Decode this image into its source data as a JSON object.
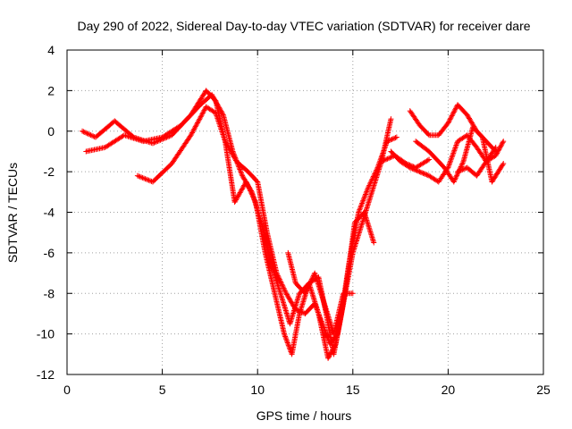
{
  "chart_data": {
    "type": "scatter",
    "title": "Day 290 of 2022, Sidereal Day-to-day VTEC variation (SDTVAR) for receiver dare",
    "xlabel": "GPS time / hours",
    "ylabel": "SDTVAR / TECUs",
    "xlim": [
      0,
      25
    ],
    "ylim": [
      -12,
      4
    ],
    "xticks": [
      0,
      5,
      10,
      15,
      20,
      25
    ],
    "yticks": [
      -12,
      -10,
      -8,
      -6,
      -4,
      -2,
      0,
      2,
      4
    ],
    "xtick_labels": [
      "0",
      "5",
      "10",
      "15",
      "20",
      "25"
    ],
    "ytick_labels": [
      "-12",
      "-10",
      "-8",
      "-6",
      "-4",
      "-2",
      "0",
      "2",
      "4"
    ],
    "grid": true,
    "marker": "+",
    "color": "#ff0000",
    "series": [
      {
        "x": [
          0.8,
          1.5,
          2.5,
          3.5,
          4.5,
          5.5,
          6.5,
          7.3,
          7.8,
          8.3,
          8.9,
          9.5,
          10.0,
          10.5,
          11.0,
          11.5,
          12.0,
          12.5,
          13.0,
          13.4,
          13.8,
          14.2,
          14.6,
          15.0,
          15.5,
          16.0,
          16.5,
          17.0
        ],
        "y": [
          0.0,
          -0.3,
          0.5,
          -0.3,
          -0.6,
          -0.2,
          0.8,
          2.0,
          1.5,
          -0.5,
          -1.5,
          -2.0,
          -2.5,
          -5.0,
          -7.0,
          -8.0,
          -8.8,
          -9.0,
          -8.5,
          -9.5,
          -10.5,
          -10.0,
          -8.0,
          -6.0,
          -4.5,
          -3.0,
          -1.5,
          0.6
        ]
      },
      {
        "x": [
          1.0,
          2.0,
          3.0,
          4.0,
          5.0,
          6.0,
          7.0,
          7.6,
          8.2,
          8.7,
          9.2,
          9.7,
          10.2,
          10.7,
          11.2,
          11.7,
          12.2,
          12.7,
          13.2,
          13.6,
          14.0,
          14.4,
          14.8,
          15.3,
          15.8,
          16.3,
          16.8,
          17.3
        ],
        "y": [
          -1.0,
          -0.8,
          -0.2,
          -0.5,
          -0.3,
          0.3,
          1.3,
          1.8,
          0.8,
          -1.0,
          -2.2,
          -3.0,
          -4.5,
          -6.5,
          -8.0,
          -9.5,
          -8.0,
          -7.5,
          -7.2,
          -9.0,
          -11.0,
          -9.0,
          -6.5,
          -4.0,
          -2.8,
          -1.8,
          -0.5,
          -0.3
        ]
      },
      {
        "x": [
          3.7,
          4.5,
          5.5,
          6.5,
          7.3,
          7.8,
          8.3,
          8.8,
          9.4,
          9.9,
          10.4,
          10.9,
          11.4,
          11.8,
          12.2,
          12.7,
          13.2,
          13.7,
          14.1,
          14.6,
          15.1,
          15.6,
          16.1
        ],
        "y": [
          -2.2,
          -2.5,
          -1.6,
          -0.2,
          1.2,
          0.9,
          -0.5,
          -3.5,
          -2.5,
          -3.5,
          -6.0,
          -8.0,
          -10.0,
          -11.0,
          -9.0,
          -7.5,
          -9.0,
          -11.2,
          -10.5,
          -8.0,
          -4.5,
          -4.0,
          -5.5
        ]
      },
      {
        "x": [
          11.6,
          12.0,
          12.5,
          13.0,
          13.5,
          14.0,
          14.5,
          15.0
        ],
        "y": [
          -6.0,
          -7.5,
          -8.0,
          -7.0,
          -8.5,
          -10.0,
          -8.0,
          -8.0
        ]
      },
      {
        "x": [
          17.0,
          17.5,
          18.0,
          18.5,
          19.0,
          19.5,
          20.0,
          20.5,
          21.0,
          21.5,
          22.0,
          22.5,
          22.9
        ],
        "y": [
          -1.0,
          -1.5,
          -1.8,
          -2.0,
          -2.2,
          -2.5,
          -1.8,
          -0.5,
          -0.2,
          -0.8,
          -1.5,
          -1.2,
          -0.5
        ]
      },
      {
        "x": [
          18.0,
          18.5,
          19.0,
          19.5,
          20.0,
          20.5,
          21.0,
          21.5,
          22.0,
          22.5
        ],
        "y": [
          1.0,
          0.3,
          -0.2,
          -0.2,
          0.4,
          1.3,
          0.8,
          0.0,
          -0.5,
          -1.0
        ]
      },
      {
        "x": [
          16.5,
          17.2,
          17.8,
          18.3,
          19.0
        ],
        "y": [
          -1.5,
          -1.2,
          -1.6,
          -1.8,
          -1.4
        ]
      },
      {
        "x": [
          18.3,
          19.0,
          19.8,
          20.3,
          20.8,
          21.3,
          21.8,
          22.3,
          22.9
        ],
        "y": [
          -0.5,
          -1.0,
          -1.8,
          -2.5,
          -1.5,
          0.2,
          -0.3,
          -2.5,
          -1.6
        ]
      },
      {
        "x": [
          20.5,
          21.0,
          21.5,
          22.0,
          22.5
        ],
        "y": [
          -2.0,
          -1.8,
          -2.2,
          -1.5,
          -0.8
        ]
      }
    ]
  }
}
